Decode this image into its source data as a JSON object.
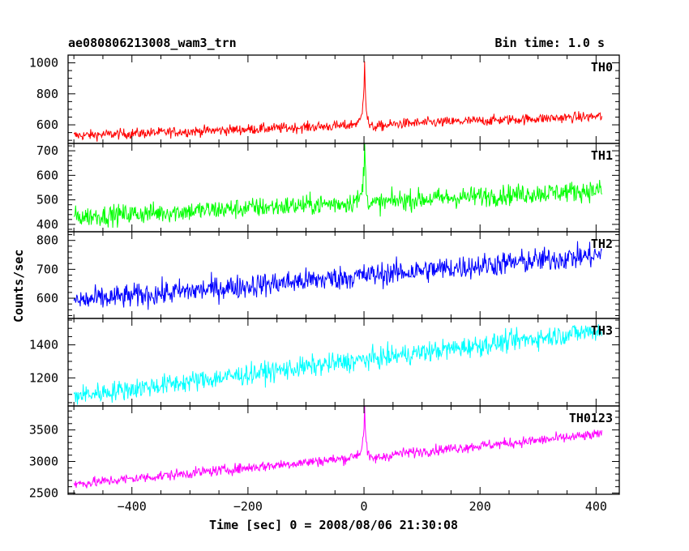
{
  "header": {
    "title": "ae080806213008_wam3_trn",
    "bin_time": "Bin time: 1.0 s"
  },
  "chart_data": {
    "type": "line",
    "xlabel": "Time [sec] 0 = 2008/08/06 21:30:08",
    "ylabel": "Counts/sec",
    "xlim": [
      -510,
      440
    ],
    "x_ticks": [
      -400,
      -200,
      0,
      200,
      400
    ],
    "x_range": [
      -500,
      410
    ],
    "bin_time_s": 1.0,
    "panels": [
      {
        "name": "TH0",
        "color": "#ff0000",
        "ylim": [
          480,
          1050
        ],
        "yticks": [
          600,
          800,
          1000
        ],
        "start": 530,
        "end": 655,
        "noise": 24,
        "peak": 430,
        "tail": 40
      },
      {
        "name": "TH1",
        "color": "#00ff00",
        "ylim": [
          370,
          730
        ],
        "yticks": [
          400,
          500,
          600,
          700
        ],
        "start": 430,
        "end": 540,
        "noise": 30,
        "peak": 240,
        "tail": 25
      },
      {
        "name": "TH2",
        "color": "#0000ff",
        "ylim": [
          530,
          830
        ],
        "yticks": [
          600,
          700,
          800
        ],
        "start": 590,
        "end": 750,
        "noise": 30,
        "peak": 0,
        "tail": 0
      },
      {
        "name": "TH3",
        "color": "#00ffff",
        "ylim": [
          1030,
          1560
        ],
        "yticks": [
          1200,
          1400
        ],
        "start": 1090,
        "end": 1490,
        "noise": 45,
        "peak": 0,
        "tail": 0
      },
      {
        "name": "TH0123",
        "color": "#ff00ff",
        "ylim": [
          2480,
          3880
        ],
        "yticks": [
          2500,
          3000,
          3500
        ],
        "start": 2640,
        "end": 3430,
        "noise": 60,
        "peak": 800,
        "tail": 120
      }
    ]
  }
}
